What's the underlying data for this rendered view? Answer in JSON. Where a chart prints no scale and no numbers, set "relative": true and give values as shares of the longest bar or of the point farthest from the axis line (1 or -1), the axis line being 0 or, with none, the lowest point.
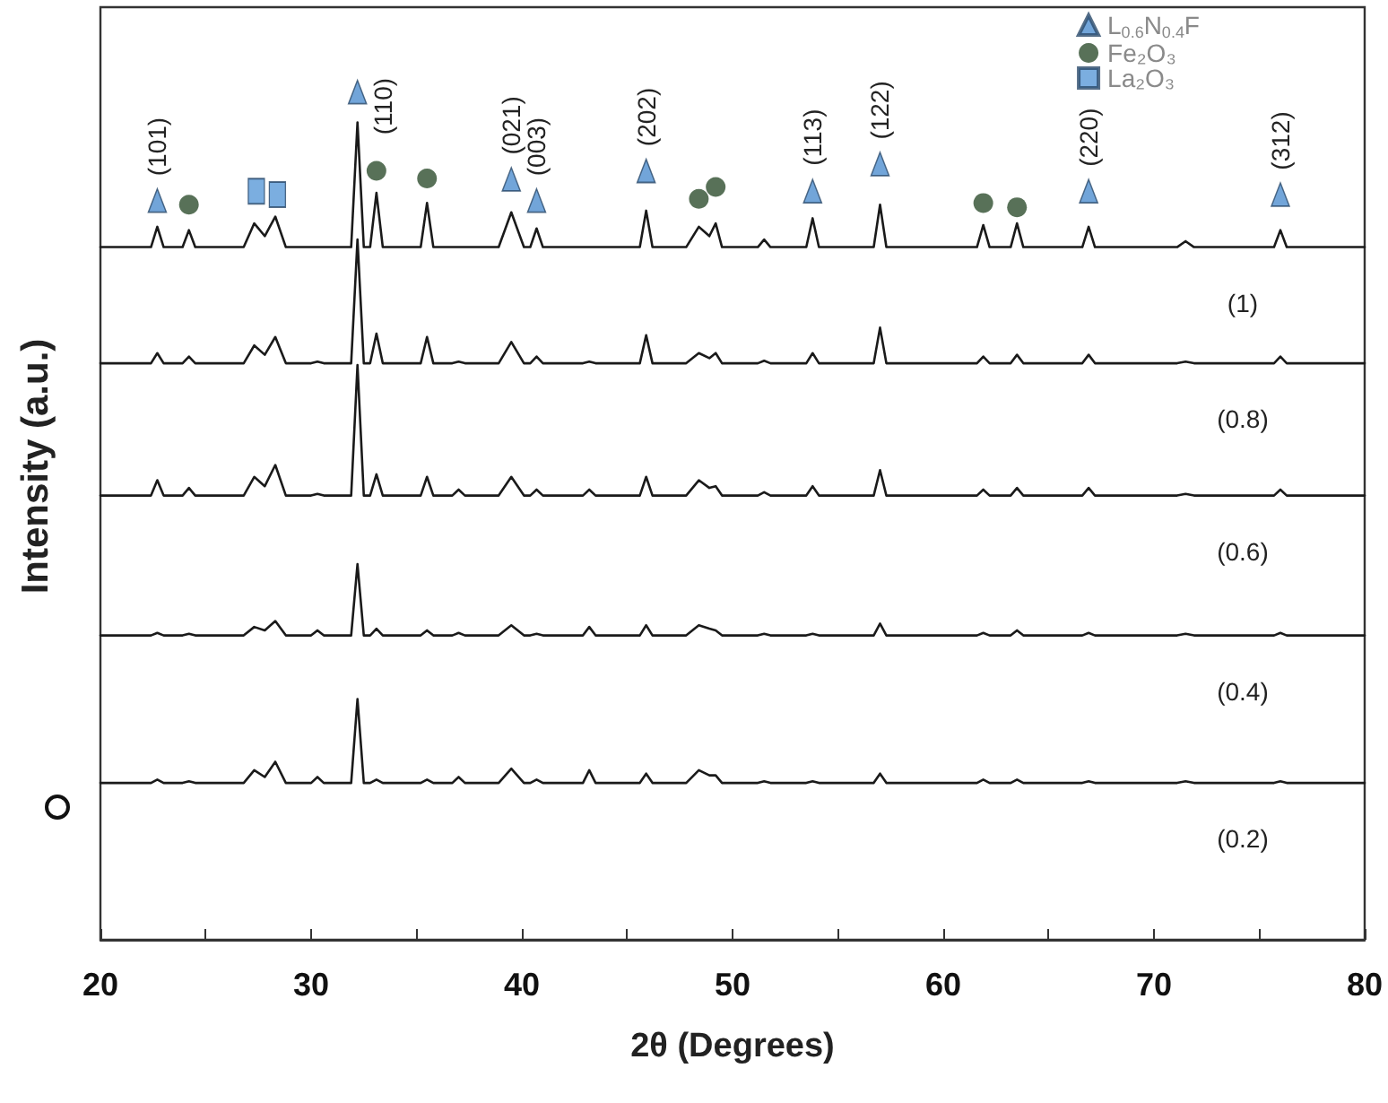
{
  "chart_data": {
    "type": "line",
    "xlabel": "2θ (Degrees)",
    "ylabel": "Intensity (a.u.)",
    "relative": true,
    "legend": "top right",
    "grid": false,
    "xlim": [
      20,
      80
    ],
    "xticks": [
      20,
      {
        "value": 25,
        "label": null
      },
      30,
      {
        "value": 35,
        "label": null
      },
      40,
      {
        "value": 45,
        "label": null
      },
      50,
      {
        "value": 55,
        "label": null
      },
      60,
      {
        "value": 65,
        "label": null
      },
      70,
      {
        "value": 75,
        "label": null
      },
      80
    ],
    "x": [
      20,
      22.4,
      22.7,
      23.0,
      23.9,
      24.2,
      24.5,
      26.8,
      27.3,
      27.8,
      28.3,
      28.8,
      30.0,
      30.3,
      30.6,
      31.9,
      32.2,
      32.5,
      32.8,
      33.1,
      33.4,
      35.2,
      35.5,
      35.8,
      36.7,
      37.0,
      37.3,
      38.9,
      39.5,
      40.1,
      40.4,
      40.7,
      41.0,
      42.9,
      43.2,
      43.5,
      45.6,
      45.9,
      46.2,
      47.8,
      48.4,
      48.9,
      49.2,
      49.5,
      51.2,
      51.5,
      51.8,
      53.5,
      53.8,
      54.1,
      56.7,
      57.0,
      57.3,
      61.6,
      61.9,
      62.2,
      63.2,
      63.5,
      63.8,
      66.6,
      66.9,
      67.2,
      71.1,
      71.5,
      71.9,
      75.7,
      76.0,
      76.3,
      80
    ],
    "series": [
      {
        "name": "(1)",
        "marker": "none",
        "color": "#1a1a1a",
        "values": [
          0.817,
          0.817,
          0.841,
          0.817,
          0.817,
          0.837,
          0.817,
          0.817,
          0.845,
          0.83,
          0.853,
          0.817,
          0.817,
          0.817,
          0.817,
          0.817,
          0.964,
          0.817,
          0.817,
          0.881,
          0.817,
          0.817,
          0.869,
          0.817,
          0.817,
          0.817,
          0.817,
          0.817,
          0.858,
          0.817,
          0.817,
          0.839,
          0.817,
          0.817,
          0.817,
          0.817,
          0.817,
          0.86,
          0.817,
          0.817,
          0.841,
          0.83,
          0.845,
          0.817,
          0.817,
          0.826,
          0.817,
          0.817,
          0.851,
          0.817,
          0.817,
          0.867,
          0.817,
          0.817,
          0.843,
          0.817,
          0.817,
          0.845,
          0.817,
          0.817,
          0.841,
          0.817,
          0.817,
          0.824,
          0.817,
          0.817,
          0.837,
          0.817,
          0.817
        ]
      },
      {
        "name": "(0.8)",
        "marker": "none",
        "color": "#1a1a1a",
        "values": [
          0.68,
          0.68,
          0.692,
          0.68,
          0.68,
          0.688,
          0.68,
          0.68,
          0.701,
          0.69,
          0.711,
          0.68,
          0.68,
          0.682,
          0.68,
          0.68,
          0.826,
          0.68,
          0.68,
          0.715,
          0.68,
          0.68,
          0.711,
          0.68,
          0.68,
          0.682,
          0.68,
          0.68,
          0.705,
          0.68,
          0.68,
          0.688,
          0.68,
          0.68,
          0.682,
          0.68,
          0.68,
          0.713,
          0.68,
          0.68,
          0.692,
          0.686,
          0.692,
          0.68,
          0.68,
          0.683,
          0.68,
          0.68,
          0.692,
          0.68,
          0.68,
          0.722,
          0.68,
          0.68,
          0.688,
          0.68,
          0.68,
          0.69,
          0.68,
          0.68,
          0.69,
          0.68,
          0.68,
          0.682,
          0.68,
          0.68,
          0.688,
          0.68,
          0.68
        ]
      },
      {
        "name": "(0.6)",
        "marker": "none",
        "color": "#1a1a1a",
        "values": [
          0.524,
          0.524,
          0.542,
          0.524,
          0.524,
          0.533,
          0.524,
          0.524,
          0.546,
          0.535,
          0.56,
          0.524,
          0.524,
          0.526,
          0.524,
          0.524,
          0.678,
          0.524,
          0.524,
          0.549,
          0.524,
          0.524,
          0.546,
          0.524,
          0.524,
          0.531,
          0.524,
          0.524,
          0.546,
          0.524,
          0.524,
          0.531,
          0.524,
          0.524,
          0.531,
          0.524,
          0.524,
          0.546,
          0.524,
          0.524,
          0.542,
          0.533,
          0.535,
          0.524,
          0.524,
          0.528,
          0.524,
          0.524,
          0.535,
          0.524,
          0.524,
          0.554,
          0.524,
          0.524,
          0.531,
          0.524,
          0.524,
          0.533,
          0.524,
          0.524,
          0.533,
          0.524,
          0.524,
          0.526,
          0.524,
          0.524,
          0.531,
          0.524,
          0.524
        ]
      },
      {
        "name": "(0.4)",
        "marker": "none",
        "color": "#1a1a1a",
        "values": [
          0.359,
          0.359,
          0.362,
          0.359,
          0.359,
          0.361,
          0.359,
          0.359,
          0.369,
          0.365,
          0.376,
          0.359,
          0.359,
          0.365,
          0.359,
          0.359,
          0.443,
          0.359,
          0.359,
          0.367,
          0.359,
          0.359,
          0.365,
          0.359,
          0.359,
          0.362,
          0.359,
          0.359,
          0.371,
          0.359,
          0.359,
          0.361,
          0.359,
          0.359,
          0.369,
          0.359,
          0.359,
          0.371,
          0.359,
          0.359,
          0.371,
          0.367,
          0.365,
          0.359,
          0.359,
          0.361,
          0.359,
          0.359,
          0.361,
          0.359,
          0.359,
          0.373,
          0.359,
          0.359,
          0.362,
          0.359,
          0.359,
          0.365,
          0.359,
          0.359,
          0.362,
          0.359,
          0.359,
          0.361,
          0.359,
          0.359,
          0.362,
          0.359,
          0.359
        ]
      },
      {
        "name": "(0.2)",
        "marker": "none",
        "color": "#1a1a1a",
        "values": [
          0.185,
          0.185,
          0.189,
          0.185,
          0.185,
          0.187,
          0.185,
          0.185,
          0.2,
          0.192,
          0.21,
          0.185,
          0.185,
          0.192,
          0.185,
          0.185,
          0.284,
          0.185,
          0.185,
          0.189,
          0.185,
          0.185,
          0.189,
          0.185,
          0.185,
          0.192,
          0.185,
          0.185,
          0.202,
          0.185,
          0.185,
          0.189,
          0.185,
          0.185,
          0.2,
          0.185,
          0.185,
          0.196,
          0.185,
          0.185,
          0.2,
          0.194,
          0.194,
          0.185,
          0.185,
          0.187,
          0.185,
          0.185,
          0.187,
          0.185,
          0.185,
          0.196,
          0.185,
          0.185,
          0.189,
          0.185,
          0.185,
          0.189,
          0.185,
          0.185,
          0.187,
          0.185,
          0.185,
          0.187,
          0.185,
          0.185,
          0.187,
          0.185,
          0.185
        ]
      },
      {
        "name": "L$_{0.6}$N$_{0.4}$F",
        "type": "scatter",
        "marker": "triangle",
        "color": "#4f8fd0",
        "x": [
          22.7,
          32.2,
          39.5,
          40.7,
          45.9,
          53.8,
          57.0,
          66.9,
          76.0
        ],
        "values": [
          0.872,
          1,
          0.897,
          0.872,
          0.907,
          0.883,
          0.915,
          0.883,
          0.879
        ]
      },
      {
        "name": "Fe₂O₃",
        "type": "scatter",
        "marker": "circle",
        "color": "#2e4d2e",
        "x": [
          24.2,
          33.1,
          35.5,
          48.4,
          49.2,
          61.9,
          63.5
        ],
        "values": [
          0.867,
          0.907,
          0.898,
          0.874,
          0.888,
          0.869,
          0.864
        ]
      },
      {
        "name": "La₂O₃",
        "type": "scatter",
        "marker": "square",
        "color": "#5a9ad8",
        "x": [
          27.4,
          28.4
        ],
        "values": [
          0.883,
          0.879
        ]
      }
    ],
    "annotations": [
      {
        "text": "(101)",
        "x": 22.7,
        "y": 0.872
      },
      {
        "text": "(110)",
        "x": 32.2,
        "y": 1
      },
      {
        "text": "(021)",
        "x": 39.5,
        "y": 0.897
      },
      {
        "text": "(003)",
        "x": 40.7,
        "y": 0.872
      },
      {
        "text": "(202)",
        "x": 45.9,
        "y": 0.907
      },
      {
        "text": "(113)",
        "x": 53.8,
        "y": 0.883
      },
      {
        "text": "(122)",
        "x": 57.0,
        "y": 0.915
      },
      {
        "text": "(220)",
        "x": 66.9,
        "y": 0.883
      },
      {
        "text": "(312)",
        "x": 76.0,
        "y": 0.879
      }
    ]
  }
}
